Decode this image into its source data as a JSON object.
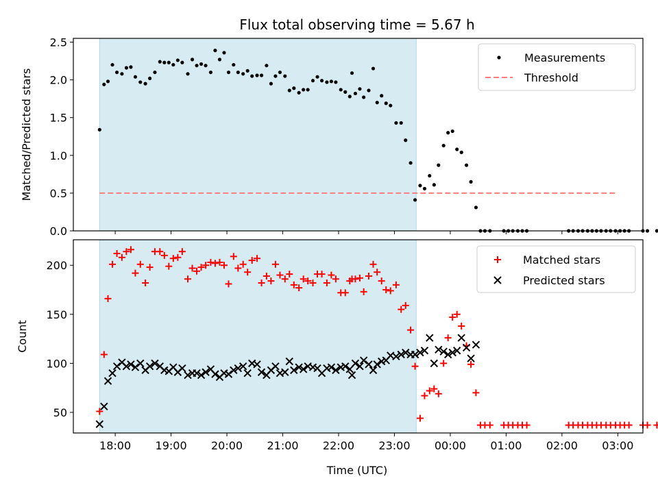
{
  "chart_data": {
    "title": "Flux total observing time = 5.67 h",
    "xlabel": "Time (UTC)",
    "x_unit": "hours since 18:00 UTC (values > 6 wrap past midnight)",
    "xlim": [
      -0.75,
      9.45
    ],
    "x_ticks": [
      {
        "value": 0,
        "label": "18:00"
      },
      {
        "value": 1,
        "label": "19:00"
      },
      {
        "value": 2,
        "label": "20:00"
      },
      {
        "value": 3,
        "label": "21:00"
      },
      {
        "value": 4,
        "label": "22:00"
      },
      {
        "value": 5,
        "label": "23:00"
      },
      {
        "value": 6,
        "label": "00:00"
      },
      {
        "value": 7,
        "label": "01:00"
      },
      {
        "value": 8,
        "label": "02:00"
      },
      {
        "value": 9,
        "label": "03:00"
      }
    ],
    "observing_window": {
      "start": -0.28,
      "end": 5.39,
      "color": "#add8e6"
    },
    "colors": {
      "measurements": "#000000",
      "threshold": "#ff7f7f",
      "matched": "#ff0000",
      "predicted": "#000000"
    },
    "top": {
      "type": "scatter",
      "ylabel": "Matched/Predicted stars",
      "ylim": [
        0,
        2.55
      ],
      "yticks": [
        0,
        0.5,
        1,
        1.5,
        2,
        2.5
      ],
      "ytick_labels": [
        "0.0",
        "0.5",
        "1.0",
        "1.5",
        "2.0",
        "2.5"
      ],
      "legend": [
        "Measurements",
        "Threshold"
      ],
      "threshold": {
        "y": 0.5,
        "x_range": [
          -0.28,
          9.0
        ]
      },
      "measurements": [
        [
          -0.28,
          1.34
        ],
        [
          -0.2,
          1.94
        ],
        [
          -0.13,
          1.98
        ],
        [
          -0.05,
          2.2
        ],
        [
          0.03,
          2.1
        ],
        [
          0.12,
          2.08
        ],
        [
          0.2,
          2.16
        ],
        [
          0.28,
          2.17
        ],
        [
          0.36,
          2.04
        ],
        [
          0.45,
          1.97
        ],
        [
          0.54,
          1.95
        ],
        [
          0.62,
          2.02
        ],
        [
          0.71,
          2.1
        ],
        [
          0.8,
          2.24
        ],
        [
          0.88,
          2.23
        ],
        [
          0.96,
          2.23
        ],
        [
          1.04,
          2.2
        ],
        [
          1.12,
          2.26
        ],
        [
          1.2,
          2.23
        ],
        [
          1.3,
          2.08
        ],
        [
          1.38,
          2.27
        ],
        [
          1.46,
          2.19
        ],
        [
          1.54,
          2.21
        ],
        [
          1.62,
          2.19
        ],
        [
          1.71,
          2.1
        ],
        [
          1.79,
          2.39
        ],
        [
          1.87,
          2.27
        ],
        [
          1.95,
          2.36
        ],
        [
          2.03,
          2.1
        ],
        [
          2.12,
          2.2
        ],
        [
          2.2,
          2.1
        ],
        [
          2.29,
          2.08
        ],
        [
          2.37,
          2.12
        ],
        [
          2.45,
          2.05
        ],
        [
          2.54,
          2.06
        ],
        [
          2.62,
          2.06
        ],
        [
          2.71,
          2.19
        ],
        [
          2.79,
          1.95
        ],
        [
          2.87,
          2.05
        ],
        [
          2.95,
          2.1
        ],
        [
          3.04,
          2.05
        ],
        [
          3.12,
          1.86
        ],
        [
          3.2,
          1.89
        ],
        [
          3.29,
          1.83
        ],
        [
          3.37,
          1.87
        ],
        [
          3.45,
          1.87
        ],
        [
          3.54,
          1.99
        ],
        [
          3.62,
          2.04
        ],
        [
          3.7,
          1.99
        ],
        [
          3.79,
          1.97
        ],
        [
          3.87,
          1.98
        ],
        [
          3.95,
          1.97
        ],
        [
          4.04,
          1.87
        ],
        [
          4.12,
          1.84
        ],
        [
          4.2,
          1.78
        ],
        [
          4.24,
          2.09
        ],
        [
          4.3,
          1.82
        ],
        [
          4.38,
          1.88
        ],
        [
          4.45,
          1.77
        ],
        [
          4.54,
          1.86
        ],
        [
          4.62,
          2.15
        ],
        [
          4.69,
          1.7
        ],
        [
          4.77,
          1.79
        ],
        [
          4.85,
          1.69
        ],
        [
          4.93,
          1.66
        ],
        [
          5.03,
          1.43
        ],
        [
          5.12,
          1.43
        ],
        [
          5.2,
          1.2
        ],
        [
          5.29,
          0.9
        ],
        [
          5.37,
          0.41
        ],
        [
          5.46,
          0.6
        ],
        [
          5.54,
          0.56
        ],
        [
          5.63,
          0.73
        ],
        [
          5.71,
          0.61
        ],
        [
          5.79,
          0.87
        ],
        [
          5.88,
          1.13
        ],
        [
          5.96,
          1.3
        ],
        [
          6.04,
          1.32
        ],
        [
          6.12,
          1.08
        ],
        [
          6.2,
          1.04
        ],
        [
          6.29,
          0.87
        ],
        [
          6.37,
          0.65
        ],
        [
          6.46,
          0.31
        ],
        [
          6.54,
          0.0
        ],
        [
          6.62,
          0.0
        ],
        [
          6.71,
          0.0
        ],
        [
          6.96,
          0.0
        ],
        [
          7.04,
          0.0
        ],
        [
          7.12,
          0.0
        ],
        [
          7.21,
          0.0
        ],
        [
          7.29,
          0.0
        ],
        [
          7.37,
          0.0
        ],
        [
          8.12,
          0.0
        ],
        [
          8.2,
          0.0
        ],
        [
          8.29,
          0.0
        ],
        [
          8.37,
          0.0
        ],
        [
          8.46,
          0.0
        ],
        [
          8.54,
          0.0
        ],
        [
          8.62,
          0.0
        ],
        [
          8.7,
          0.0
        ],
        [
          8.79,
          0.0
        ],
        [
          8.87,
          0.0
        ],
        [
          8.96,
          0.0
        ],
        [
          9.04,
          0.0
        ],
        [
          9.12,
          0.0
        ],
        [
          9.2,
          0.0
        ],
        [
          9.45,
          0.0
        ],
        [
          9.53,
          0.0
        ],
        [
          9.7,
          0.0
        ]
      ]
    },
    "bottom": {
      "type": "scatter",
      "ylabel": "Count",
      "ylim": [
        29,
        226
      ],
      "yticks": [
        50,
        100,
        150,
        200
      ],
      "ytick_labels": [
        "50",
        "100",
        "150",
        "200"
      ],
      "legend": [
        "Matched stars",
        "Predicted stars"
      ],
      "matched": [
        [
          -0.28,
          51
        ],
        [
          -0.2,
          109
        ],
        [
          -0.13,
          166
        ],
        [
          -0.05,
          201
        ],
        [
          0.03,
          212
        ],
        [
          0.12,
          208
        ],
        [
          0.2,
          214
        ],
        [
          0.28,
          216
        ],
        [
          0.36,
          192
        ],
        [
          0.45,
          201
        ],
        [
          0.54,
          182
        ],
        [
          0.62,
          198
        ],
        [
          0.71,
          214
        ],
        [
          0.8,
          214
        ],
        [
          0.88,
          210
        ],
        [
          0.96,
          199
        ],
        [
          1.04,
          207
        ],
        [
          1.12,
          208
        ],
        [
          1.2,
          214
        ],
        [
          1.3,
          186
        ],
        [
          1.38,
          197
        ],
        [
          1.46,
          194
        ],
        [
          1.54,
          198
        ],
        [
          1.62,
          200
        ],
        [
          1.71,
          203
        ],
        [
          1.79,
          202
        ],
        [
          1.87,
          203
        ],
        [
          1.95,
          200
        ],
        [
          2.03,
          181
        ],
        [
          2.12,
          209
        ],
        [
          2.2,
          197
        ],
        [
          2.29,
          201
        ],
        [
          2.37,
          193
        ],
        [
          2.45,
          205
        ],
        [
          2.54,
          207
        ],
        [
          2.62,
          182
        ],
        [
          2.71,
          189
        ],
        [
          2.79,
          184
        ],
        [
          2.87,
          201
        ],
        [
          2.95,
          190
        ],
        [
          3.04,
          186
        ],
        [
          3.12,
          191
        ],
        [
          3.2,
          180
        ],
        [
          3.29,
          177
        ],
        [
          3.37,
          186
        ],
        [
          3.45,
          184
        ],
        [
          3.54,
          182
        ],
        [
          3.62,
          191
        ],
        [
          3.7,
          191
        ],
        [
          3.79,
          182
        ],
        [
          3.87,
          190
        ],
        [
          3.95,
          186
        ],
        [
          4.04,
          172
        ],
        [
          4.12,
          172
        ],
        [
          4.2,
          184
        ],
        [
          4.24,
          186
        ],
        [
          4.3,
          186
        ],
        [
          4.38,
          187
        ],
        [
          4.45,
          173
        ],
        [
          4.54,
          189
        ],
        [
          4.62,
          201
        ],
        [
          4.69,
          193
        ],
        [
          4.77,
          184
        ],
        [
          4.85,
          175
        ],
        [
          4.93,
          174
        ],
        [
          5.03,
          180
        ],
        [
          5.12,
          155
        ],
        [
          5.2,
          159
        ],
        [
          5.29,
          134
        ],
        [
          5.37,
          97
        ],
        [
          5.46,
          44
        ],
        [
          5.54,
          67
        ],
        [
          5.63,
          72
        ],
        [
          5.71,
          74
        ],
        [
          5.79,
          69
        ],
        [
          5.88,
          100
        ],
        [
          5.96,
          126
        ],
        [
          6.04,
          147
        ],
        [
          6.12,
          150
        ],
        [
          6.2,
          138
        ],
        [
          6.29,
          118
        ],
        [
          6.37,
          99
        ],
        [
          6.46,
          70
        ],
        [
          6.54,
          37
        ],
        [
          6.62,
          37
        ],
        [
          6.71,
          37
        ],
        [
          6.96,
          37
        ],
        [
          7.04,
          37
        ],
        [
          7.12,
          37
        ],
        [
          7.21,
          37
        ],
        [
          7.29,
          37
        ],
        [
          7.37,
          37
        ],
        [
          8.12,
          37
        ],
        [
          8.2,
          37
        ],
        [
          8.29,
          37
        ],
        [
          8.37,
          37
        ],
        [
          8.46,
          37
        ],
        [
          8.54,
          37
        ],
        [
          8.62,
          37
        ],
        [
          8.7,
          37
        ],
        [
          8.79,
          37
        ],
        [
          8.87,
          37
        ],
        [
          8.96,
          37
        ],
        [
          9.04,
          37
        ],
        [
          9.12,
          37
        ],
        [
          9.2,
          37
        ],
        [
          9.45,
          37
        ],
        [
          9.53,
          37
        ],
        [
          9.7,
          37
        ]
      ],
      "predicted": [
        [
          -0.28,
          38
        ],
        [
          -0.2,
          56
        ],
        [
          -0.13,
          82
        ],
        [
          -0.05,
          90
        ],
        [
          0.03,
          97
        ],
        [
          0.12,
          101
        ],
        [
          0.2,
          97
        ],
        [
          0.28,
          99
        ],
        [
          0.36,
          96
        ],
        [
          0.45,
          100
        ],
        [
          0.54,
          93
        ],
        [
          0.62,
          97
        ],
        [
          0.71,
          100
        ],
        [
          0.8,
          97
        ],
        [
          0.88,
          93
        ],
        [
          0.96,
          92
        ],
        [
          1.04,
          96
        ],
        [
          1.12,
          91
        ],
        [
          1.2,
          95
        ],
        [
          1.3,
          88
        ],
        [
          1.38,
          90
        ],
        [
          1.46,
          90
        ],
        [
          1.54,
          88
        ],
        [
          1.62,
          91
        ],
        [
          1.71,
          94
        ],
        [
          1.79,
          89
        ],
        [
          1.87,
          86
        ],
        [
          1.95,
          90
        ],
        [
          2.03,
          89
        ],
        [
          2.12,
          93
        ],
        [
          2.2,
          95
        ],
        [
          2.29,
          97
        ],
        [
          2.37,
          90
        ],
        [
          2.45,
          100
        ],
        [
          2.54,
          99
        ],
        [
          2.62,
          91
        ],
        [
          2.71,
          88
        ],
        [
          2.79,
          93
        ],
        [
          2.87,
          97
        ],
        [
          2.95,
          90
        ],
        [
          3.04,
          91
        ],
        [
          3.12,
          102
        ],
        [
          3.2,
          93
        ],
        [
          3.29,
          96
        ],
        [
          3.37,
          94
        ],
        [
          3.45,
          97
        ],
        [
          3.54,
          96
        ],
        [
          3.62,
          95
        ],
        [
          3.7,
          90
        ],
        [
          3.79,
          95
        ],
        [
          3.87,
          96
        ],
        [
          3.95,
          93
        ],
        [
          4.04,
          96
        ],
        [
          4.12,
          97
        ],
        [
          4.2,
          94
        ],
        [
          4.24,
          88
        ],
        [
          4.3,
          100
        ],
        [
          4.38,
          97
        ],
        [
          4.45,
          103
        ],
        [
          4.54,
          99
        ],
        [
          4.62,
          93
        ],
        [
          4.69,
          99
        ],
        [
          4.77,
          102
        ],
        [
          4.85,
          103
        ],
        [
          4.93,
          108
        ],
        [
          5.03,
          107
        ],
        [
          5.12,
          109
        ],
        [
          5.2,
          111
        ],
        [
          5.29,
          109
        ],
        [
          5.37,
          109
        ],
        [
          5.46,
          111
        ],
        [
          5.54,
          113
        ],
        [
          5.63,
          126
        ],
        [
          5.71,
          100
        ],
        [
          5.79,
          114
        ],
        [
          5.88,
          112
        ],
        [
          5.96,
          109
        ],
        [
          6.04,
          111
        ],
        [
          6.12,
          113
        ],
        [
          6.2,
          126
        ],
        [
          6.29,
          116
        ],
        [
          6.37,
          105
        ],
        [
          6.46,
          119
        ]
      ]
    }
  }
}
